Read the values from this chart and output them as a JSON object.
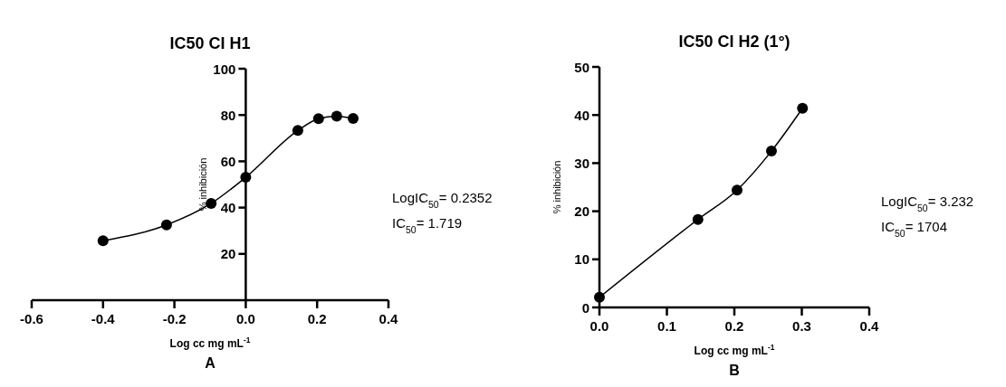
{
  "chart_data": [
    {
      "type": "line",
      "title": "IC50 CI H1",
      "xlabel": "Log cc mg mL$^{-1}$",
      "ylabel": "% inhibición",
      "x": [
        -0.4,
        -0.222,
        -0.097,
        0,
        0.146,
        0.204,
        0.255,
        0.301
      ],
      "series": [
        {
          "color": "#000000",
          "values": [
            25.7,
            32.5,
            41.8,
            53.1,
            73.3,
            78.4,
            79.5,
            78.5
          ]
        }
      ],
      "xlim": [
        -0.6,
        0.4
      ],
      "xticks": [
        {
          "value": -0.6,
          "label": "-0.6"
        },
        {
          "value": -0.4,
          "label": "-0.4"
        },
        {
          "value": -0.2,
          "label": "-0.2"
        },
        {
          "value": 0,
          "label": "0.0"
        },
        {
          "value": 0.2,
          "label": "0.2"
        },
        {
          "value": 0.4,
          "label": "0.4"
        }
      ],
      "ylim": [
        0,
        100
      ],
      "yticks": [
        20,
        40,
        60,
        80,
        100
      ],
      "marker": "circle",
      "grid": false,
      "annotations": [
        "LogIC$_{50}$= 0.2352",
        "IC$_{50}$= 1.719",
        "A"
      ]
    },
    {
      "type": "line",
      "title": "IC50 CI H2 (1°)",
      "xlabel": "Log cc mg mL$^{-1}$",
      "ylabel": "% inhibición",
      "x": [
        0,
        0.146,
        0.204,
        0.255,
        0.301
      ],
      "series": [
        {
          "color": "#000000",
          "values": [
            2.1,
            18.3,
            24.4,
            32.5,
            41.4
          ]
        }
      ],
      "xlim": [
        0,
        0.4
      ],
      "xticks": [
        {
          "value": 0,
          "label": "0.0"
        },
        {
          "value": 0.1,
          "label": "0.1"
        },
        {
          "value": 0.2,
          "label": "0.2"
        },
        {
          "value": 0.3,
          "label": "0.3"
        },
        {
          "value": 0.4,
          "label": "0.4"
        }
      ],
      "ylim": [
        0,
        50
      ],
      "yticks": [
        0,
        10,
        20,
        30,
        40,
        50
      ],
      "marker": "circle",
      "grid": false,
      "annotations": [
        "LogIC$_{50}$= 3.232",
        "IC$_{50}$= 1704",
        "B"
      ]
    }
  ]
}
